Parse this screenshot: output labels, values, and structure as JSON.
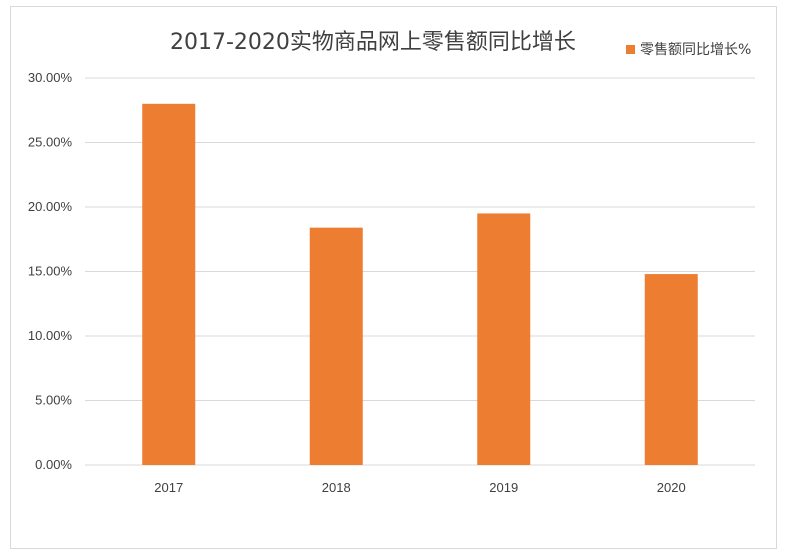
{
  "chart_data": {
    "type": "bar",
    "title": "2017-2020实物商品网上零售额同比增长",
    "categories": [
      "2017",
      "2018",
      "2019",
      "2020"
    ],
    "series": [
      {
        "name": "零售额同比增长%",
        "values": [
          28.0,
          18.4,
          19.5,
          14.8
        ]
      }
    ],
    "ylim": [
      0,
      30
    ],
    "yticks": [
      "0.00%",
      "5.00%",
      "10.00%",
      "15.00%",
      "20.00%",
      "25.00%",
      "30.00%"
    ],
    "grid": true,
    "legend_position": "top-right",
    "bar_color": "#ed7d31",
    "grid_color": "#d9d9d9",
    "text_color": "#404040"
  }
}
